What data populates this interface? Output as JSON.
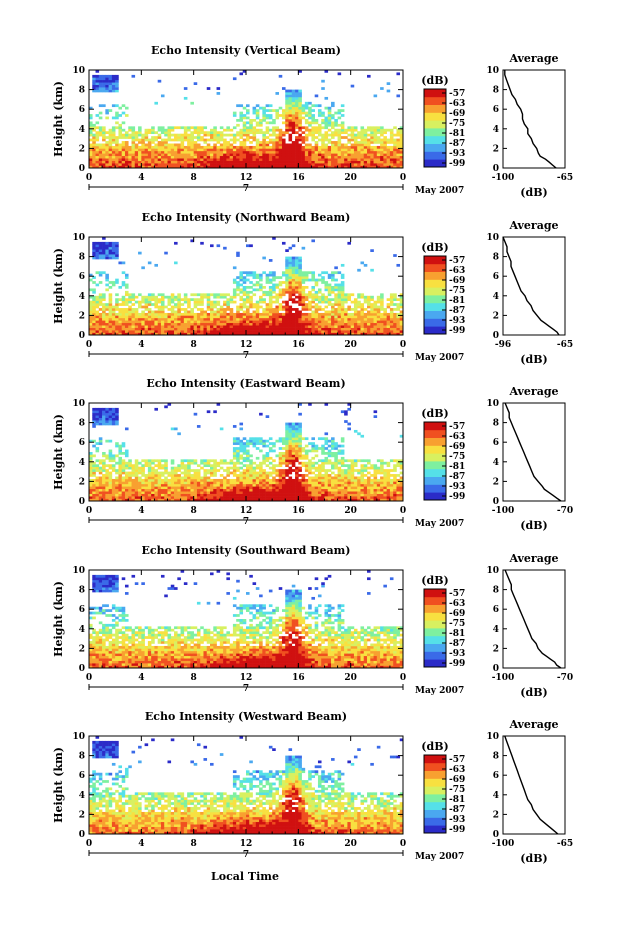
{
  "figure": {
    "xlabel": "Local Time",
    "ylabel": "Height (km)",
    "date_label": "May 2007",
    "day_label": "7",
    "colorbar_unit": "(dB)",
    "colorbar_ticks": [
      "-57",
      "-63",
      "-69",
      "-75",
      "-81",
      "-87",
      "-93",
      "-99"
    ],
    "colormap": [
      "#2b2bc8",
      "#3a6ae8",
      "#4aa8f0",
      "#55e0e8",
      "#7ef0a0",
      "#d8f060",
      "#f8e040",
      "#f8a030",
      "#f05020",
      "#d01010"
    ],
    "average_title": "Average",
    "average_xlabel": "(dB)"
  },
  "chart_data": [
    {
      "type": "heatmap",
      "title": "Echo Intensity (Vertical Beam)",
      "x_ticks": [
        "0",
        "4",
        "8",
        "12",
        "16",
        "20",
        "0"
      ],
      "y_ticks": [
        "0",
        "2",
        "4",
        "6",
        "8",
        "10"
      ],
      "xlim": [
        0,
        24
      ],
      "ylim": [
        0,
        10
      ],
      "clim": [
        -99,
        -57
      ],
      "intensity_levels": [
        [
          0,
          0.5,
          -62
        ],
        [
          2,
          4,
          -75
        ],
        [
          4,
          6,
          -90
        ],
        [
          8,
          9.5,
          -95
        ]
      ],
      "average": {
        "x_ticks": [
          "-100",
          "-65"
        ],
        "xlim": [
          -100,
          -65
        ],
        "x": [
          -99,
          -99,
          -98,
          -97,
          -96,
          -95,
          -93,
          -92,
          -90,
          -89,
          -89,
          -88,
          -86,
          -86,
          -84,
          -83,
          -81,
          -80,
          -79,
          -76,
          -74,
          -72,
          -70
        ],
        "y": [
          10,
          9.5,
          9.0,
          8.5,
          8.0,
          7.5,
          7.0,
          6.5,
          6.0,
          5.5,
          5.0,
          4.5,
          4.0,
          3.5,
          3.0,
          2.5,
          2.0,
          1.5,
          1.2,
          0.9,
          0.6,
          0.3,
          0.0
        ]
      }
    },
    {
      "type": "heatmap",
      "title": "Echo Intensity (Northward Beam)",
      "x_ticks": [
        "0",
        "4",
        "8",
        "12",
        "16",
        "20",
        "0"
      ],
      "y_ticks": [
        "0",
        "2",
        "4",
        "6",
        "8",
        "10"
      ],
      "xlim": [
        0,
        24
      ],
      "ylim": [
        0,
        10
      ],
      "clim": [
        -99,
        -57
      ],
      "intensity_levels": [
        [
          0,
          0.5,
          -63
        ],
        [
          2,
          4,
          -78
        ],
        [
          4,
          6,
          -92
        ],
        [
          8,
          9.5,
          -96
        ]
      ],
      "average": {
        "x_ticks": [
          "-96",
          "-65"
        ],
        "xlim": [
          -96,
          -65
        ],
        "x": [
          -96,
          -95,
          -94,
          -94,
          -93,
          -92,
          -92,
          -91,
          -90,
          -89,
          -88,
          -87,
          -85,
          -84,
          -82,
          -81,
          -79,
          -77,
          -75,
          -73,
          -71,
          -69,
          -68
        ],
        "y": [
          10,
          9.5,
          9.0,
          8.5,
          8.0,
          7.5,
          7.0,
          6.5,
          6.0,
          5.5,
          5.0,
          4.5,
          4.0,
          3.5,
          3.0,
          2.5,
          2.0,
          1.5,
          1.2,
          0.9,
          0.6,
          0.3,
          0.0
        ]
      }
    },
    {
      "type": "heatmap",
      "title": "Echo Intensity (Eastward Beam)",
      "x_ticks": [
        "0",
        "4",
        "8",
        "12",
        "16",
        "20",
        "0"
      ],
      "y_ticks": [
        "0",
        "2",
        "4",
        "6",
        "8",
        "10"
      ],
      "xlim": [
        0,
        24
      ],
      "ylim": [
        0,
        10
      ],
      "clim": [
        -99,
        -57
      ],
      "intensity_levels": [
        [
          0,
          0.5,
          -64
        ],
        [
          2,
          4,
          -79
        ],
        [
          4,
          6,
          -92
        ],
        [
          8,
          9.5,
          -96
        ]
      ],
      "average": {
        "x_ticks": [
          "-100",
          "-70"
        ],
        "xlim": [
          -100,
          -70
        ],
        "x": [
          -99,
          -98,
          -97,
          -97,
          -96,
          -95,
          -94,
          -93,
          -92,
          -91,
          -90,
          -89,
          -88,
          -87,
          -86,
          -85,
          -83,
          -81,
          -80,
          -78,
          -76,
          -74,
          -72
        ],
        "y": [
          10,
          9.5,
          9.0,
          8.5,
          8.0,
          7.5,
          7.0,
          6.5,
          6.0,
          5.5,
          5.0,
          4.5,
          4.0,
          3.5,
          3.0,
          2.5,
          2.0,
          1.5,
          1.2,
          0.9,
          0.6,
          0.3,
          0.0
        ]
      }
    },
    {
      "type": "heatmap",
      "title": "Echo Intensity (Southward Beam)",
      "x_ticks": [
        "0",
        "4",
        "8",
        "12",
        "16",
        "20",
        "0"
      ],
      "y_ticks": [
        "0",
        "2",
        "4",
        "6",
        "8",
        "10"
      ],
      "xlim": [
        0,
        24
      ],
      "ylim": [
        0,
        10
      ],
      "clim": [
        -99,
        -57
      ],
      "intensity_levels": [
        [
          0,
          0.5,
          -64
        ],
        [
          2,
          4,
          -79
        ],
        [
          4,
          6,
          -92
        ],
        [
          8,
          9.5,
          -96
        ]
      ],
      "average": {
        "x_ticks": [
          "-100",
          "-70"
        ],
        "xlim": [
          -100,
          -70
        ],
        "x": [
          -99,
          -98,
          -97,
          -96,
          -96,
          -95,
          -94,
          -93,
          -92,
          -91,
          -90,
          -89,
          -88,
          -87,
          -86,
          -84,
          -83,
          -81,
          -79,
          -77,
          -75,
          -74,
          -72
        ],
        "y": [
          10,
          9.5,
          9.0,
          8.5,
          8.0,
          7.5,
          7.0,
          6.5,
          6.0,
          5.5,
          5.0,
          4.5,
          4.0,
          3.5,
          3.0,
          2.5,
          2.0,
          1.5,
          1.2,
          0.9,
          0.6,
          0.3,
          0.0
        ]
      }
    },
    {
      "type": "heatmap",
      "title": "Echo Intensity (Westward Beam)",
      "x_ticks": [
        "0",
        "4",
        "8",
        "12",
        "16",
        "20",
        "0"
      ],
      "y_ticks": [
        "0",
        "2",
        "4",
        "6",
        "8",
        "10"
      ],
      "xlim": [
        0,
        24
      ],
      "ylim": [
        0,
        10
      ],
      "clim": [
        -99,
        -57
      ],
      "intensity_levels": [
        [
          0,
          0.5,
          -63
        ],
        [
          2,
          4,
          -78
        ],
        [
          4,
          6,
          -91
        ],
        [
          8,
          9.5,
          -96
        ]
      ],
      "average": {
        "x_ticks": [
          "-100",
          "-65"
        ],
        "xlim": [
          -100,
          -65
        ],
        "x": [
          -99,
          -98,
          -97,
          -96,
          -95,
          -94,
          -93,
          -92,
          -91,
          -90,
          -89,
          -88,
          -87,
          -86,
          -84,
          -83,
          -81,
          -79,
          -77,
          -75,
          -73,
          -71,
          -69
        ],
        "y": [
          10,
          9.5,
          9.0,
          8.5,
          8.0,
          7.5,
          7.0,
          6.5,
          6.0,
          5.5,
          5.0,
          4.5,
          4.0,
          3.5,
          3.0,
          2.5,
          2.0,
          1.5,
          1.2,
          0.9,
          0.6,
          0.3,
          0.0
        ]
      }
    }
  ]
}
